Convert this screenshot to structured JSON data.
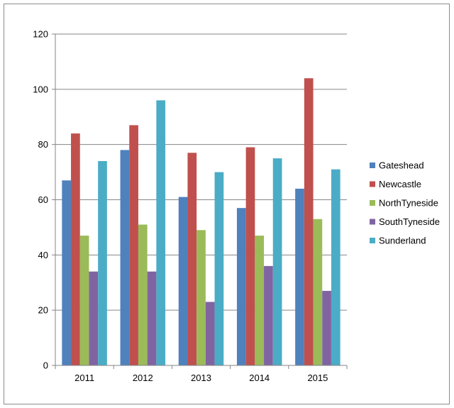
{
  "chart_data": {
    "type": "bar",
    "title": "",
    "xlabel": "",
    "ylabel": "",
    "categories": [
      "2011",
      "2012",
      "2013",
      "2014",
      "2015"
    ],
    "ylim": [
      0,
      120
    ],
    "yticks": [
      0,
      20,
      40,
      60,
      80,
      100,
      120
    ],
    "grid": true,
    "legend_position": "right",
    "series": [
      {
        "name": "Gateshead",
        "color": "#4f81bd",
        "values": [
          67,
          78,
          61,
          57,
          64
        ]
      },
      {
        "name": "Newcastle",
        "color": "#c0504d",
        "values": [
          84,
          87,
          77,
          79,
          104
        ]
      },
      {
        "name": "NorthTyneside",
        "color": "#9bbb59",
        "values": [
          47,
          51,
          49,
          47,
          53
        ]
      },
      {
        "name": "SouthTyneside",
        "color": "#8064a2",
        "values": [
          34,
          34,
          23,
          36,
          27
        ]
      },
      {
        "name": "Sunderland",
        "color": "#4bacc6",
        "values": [
          74,
          96,
          70,
          75,
          71
        ]
      }
    ]
  }
}
